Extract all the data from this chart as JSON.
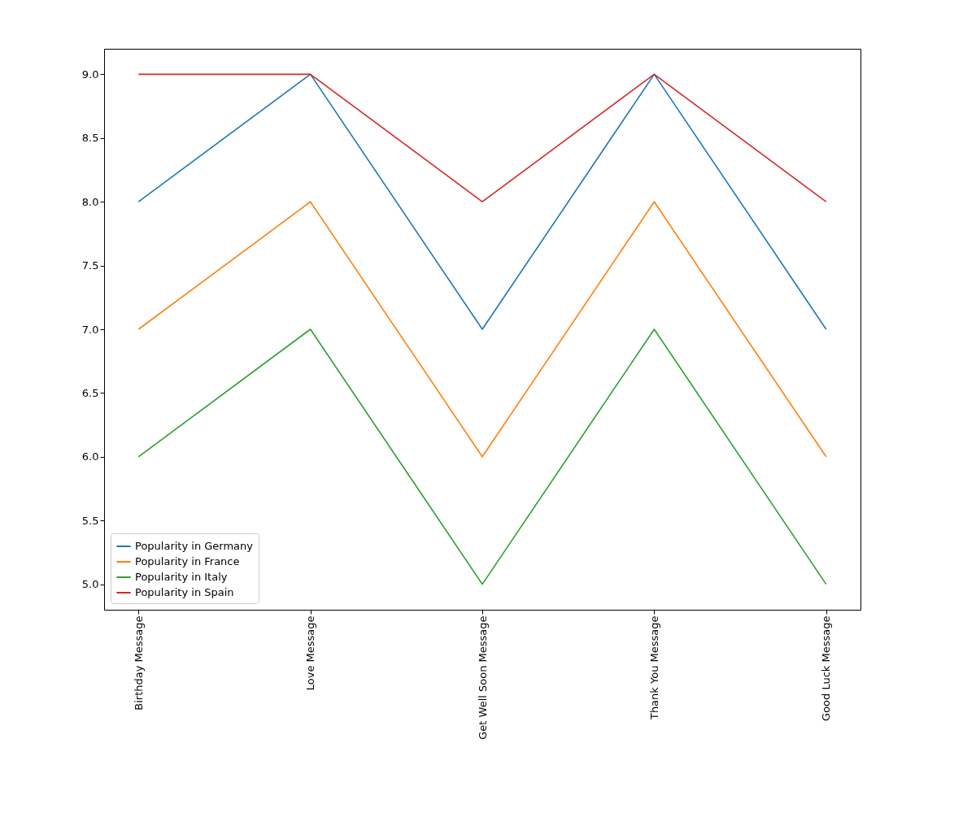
{
  "chart_data": {
    "type": "line",
    "categories": [
      "Birthday Message",
      "Love Message",
      "Get Well Soon Message",
      "Thank You Message",
      "Good Luck Message"
    ],
    "series": [
      {
        "name": "Popularity in Germany",
        "color": "#1f77b4",
        "values": [
          8,
          9,
          7,
          9,
          7
        ]
      },
      {
        "name": "Popularity in France",
        "color": "#ff7f0e",
        "values": [
          7,
          8,
          6,
          8,
          6
        ]
      },
      {
        "name": "Popularity in Italy",
        "color": "#2ca02c",
        "values": [
          6,
          7,
          5,
          7,
          5
        ]
      },
      {
        "name": "Popularity in Spain",
        "color": "#d62728",
        "values": [
          9,
          9,
          8,
          9,
          8
        ]
      }
    ],
    "ylim": [
      4.8,
      9.2
    ],
    "yticks": [
      {
        "value": 5,
        "label": "5.0"
      },
      5.5,
      {
        "value": 6,
        "label": "6.0"
      },
      6.5,
      {
        "value": 7,
        "label": "7.0"
      },
      7.5,
      {
        "value": 8,
        "label": "8.0"
      },
      8.5,
      {
        "value": 9,
        "label": "9.0"
      }
    ],
    "grid": false,
    "legend": "bottom left",
    "marker": "none",
    "line_style": "solid"
  }
}
